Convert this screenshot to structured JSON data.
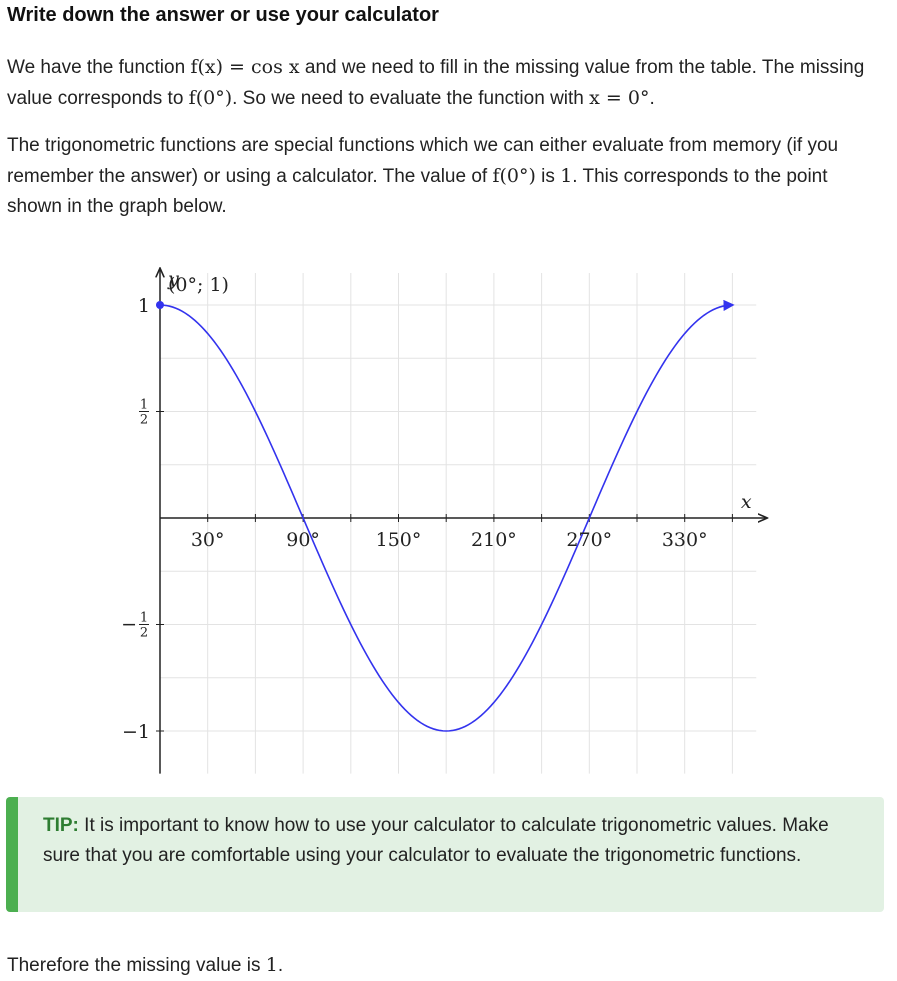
{
  "heading": "Write down the answer or use your calculator",
  "intro": {
    "t1": "We have the function ",
    "fx": "f(x) = cos x",
    "t2": " and we need to fill in the missing value from the table. The missing value corresponds to ",
    "f0": "f(0°)",
    "t3": ". So we need to evaluate the function with ",
    "x0": "x = 0°",
    "t4": "."
  },
  "explain": {
    "t1": "The trigonometric functions are special functions which we can either evaluate from memory (if you remember the answer) or using a calculator. The value of ",
    "f0": "f(0°)",
    "t2": " is ",
    "val": "1",
    "t3": ". This corresponds to the point shown in the graph below."
  },
  "tip": {
    "label": "TIP:",
    "text": " It is important to know how to use your calculator to calculate trigonometric values. Make sure that you are comfortable using your calculator to evaluate the trigonometric functions."
  },
  "conclusion": {
    "text": "Therefore the missing value is ",
    "val": "1",
    "end": "."
  },
  "chart_data": {
    "type": "line",
    "function": "cos x",
    "series": [
      {
        "x": [
          0,
          30,
          60,
          90,
          120,
          150,
          180,
          210,
          240,
          270,
          300,
          330,
          360
        ],
        "y": [
          1,
          0.866,
          0.5,
          0,
          -0.5,
          -0.866,
          -1,
          -0.866,
          -0.5,
          0,
          0.5,
          0.866,
          1
        ]
      }
    ],
    "highlight_point": {
      "x": 0,
      "y": 1,
      "label": "(0°; 1)"
    },
    "x_ticks": [
      30,
      90,
      150,
      210,
      270,
      330
    ],
    "x_tick_labels": [
      "30°",
      "90°",
      "150°",
      "210°",
      "270°",
      "330°"
    ],
    "y_tick_labels": {
      "one": "1",
      "half_num": "1",
      "half_den": "2",
      "neg_half_num": "1",
      "neg_half_den": "2",
      "minus": "−",
      "neg_one": "−1"
    },
    "xlabel": "x",
    "ylabel": "y",
    "xlim": [
      0,
      375
    ],
    "ylim": [
      -1.2,
      1.15
    ],
    "grid": true,
    "line_color": "#3333ee",
    "grid_color": "#e3e3e3"
  }
}
